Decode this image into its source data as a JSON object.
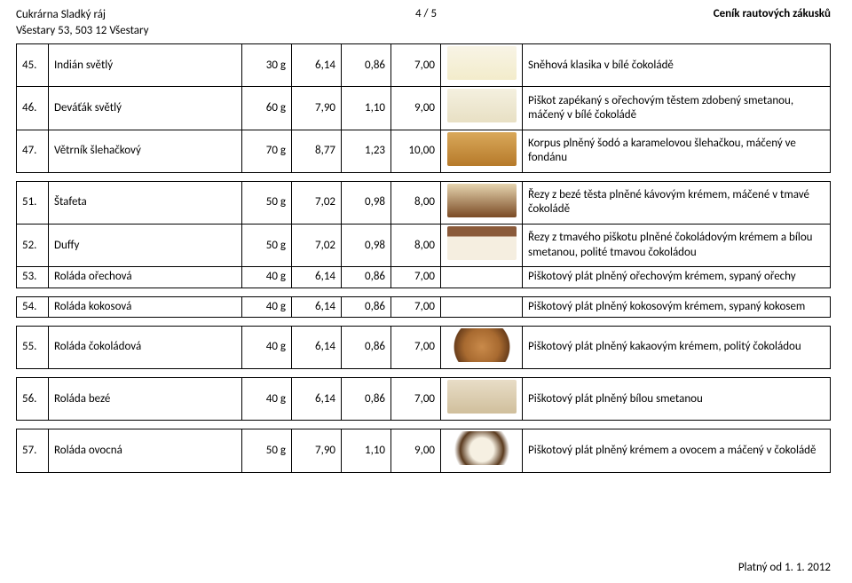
{
  "header": {
    "company": "Cukrárna Sladký ráj",
    "address": "Všestary 53, 503 12  Všestary",
    "page": "4 / 5",
    "title": "Ceník rautových zákusků"
  },
  "footer": {
    "valid": "Platný od 1. 1. 2012"
  },
  "thumb_colors": {
    "r45": "linear-gradient(#f8f4e6,#f3eccb)",
    "r46": "linear-gradient(#f4f0df,#e8e0c4)",
    "r47": "linear-gradient(#d9a85a,#b67a2a)",
    "r51": "linear-gradient(#e6d5b0,#7a4a24)",
    "r52": "linear-gradient(#8a5a3a 0%,#8a5a3a 30%,#f5eee0 30%,#f5eee0 100%)",
    "r55": "radial-gradient(circle at 50% 55%, #c98a4a 0%, #a86a30 45%, #6b3f1c 70%, #ffffff 72%)",
    "r56": "linear-gradient(#e8ddc7,#d0bf9c)",
    "r57": "radial-gradient(circle at 50% 55%, #f6f0e2 0%, #f6f0e2 30%, #5a3a1e 55%, #ffffff 70%)"
  },
  "groups": [
    {
      "rows": [
        {
          "num": "45.",
          "name": "Indián světlý",
          "weight": "30 g",
          "p1": "6,14",
          "p2": "0,86",
          "p3": "7,00",
          "thumb": "r45",
          "desc": "Sněhová klasika v bílé čokoládě"
        },
        {
          "num": "46.",
          "name": "Deváťák světlý",
          "weight": "60 g",
          "p1": "7,90",
          "p2": "1,10",
          "p3": "9,00",
          "thumb": "r46",
          "desc": "Piškot zapékaný s ořechovým těstem zdobený smetanou, máčený v bílé čokoládě"
        },
        {
          "num": "47.",
          "name": "Větrník šlehačkový",
          "weight": "70 g",
          "p1": "8,77",
          "p2": "1,23",
          "p3": "10,00",
          "thumb": "r47",
          "desc": "Korpus plněný šodó a karamelovou šlehačkou, máčený ve fondánu"
        }
      ]
    },
    {
      "rows": [
        {
          "num": "51.",
          "name": "Štafeta",
          "weight": "50 g",
          "p1": "7,02",
          "p2": "0,98",
          "p3": "8,00",
          "thumb": "r51",
          "desc": "Řezy z bezé těsta plněné kávovým krémem, máčené v tmavé čokoládě"
        },
        {
          "num": "52.",
          "name": "Duffy",
          "weight": "50 g",
          "p1": "7,02",
          "p2": "0,98",
          "p3": "8,00",
          "thumb": "r52",
          "desc": "Řezy z tmavého piškotu plněné čokoládovým krémem a bílou smetanou, polité tmavou čokoládou"
        },
        {
          "num": "53.",
          "name": "Roláda ořechová",
          "weight": "40 g",
          "p1": "6,14",
          "p2": "0,86",
          "p3": "7,00",
          "thumb": null,
          "desc": "Piškotový plát plněný ořechovým krémem, sypaný ořechy"
        }
      ]
    },
    {
      "rows": [
        {
          "num": "54.",
          "name": "Roláda kokosová",
          "weight": "40 g",
          "p1": "6,14",
          "p2": "0,86",
          "p3": "7,00",
          "thumb": null,
          "desc": "Piškotový plát plněný kokosovým krémem, sypaný kokosem"
        }
      ]
    },
    {
      "rows": [
        {
          "num": "55.",
          "name": "Roláda čokoládová",
          "weight": "40 g",
          "p1": "6,14",
          "p2": "0,86",
          "p3": "7,00",
          "thumb": "r55",
          "desc": "Piškotový plát plněný kakaovým krémem, politý čokoládou"
        }
      ]
    },
    {
      "rows": [
        {
          "num": "56.",
          "name": "Roláda bezé",
          "weight": "40 g",
          "p1": "6,14",
          "p2": "0,86",
          "p3": "7,00",
          "thumb": "r56",
          "desc": "Piškotový plát plněný bílou smetanou"
        }
      ]
    },
    {
      "rows": [
        {
          "num": "57.",
          "name": "Roláda ovocná",
          "weight": "50 g",
          "p1": "7,90",
          "p2": "1,10",
          "p3": "9,00",
          "thumb": "r57",
          "desc": "Piškotový plát plněný krémem a ovocem a máčený v čokoládě"
        }
      ]
    }
  ]
}
